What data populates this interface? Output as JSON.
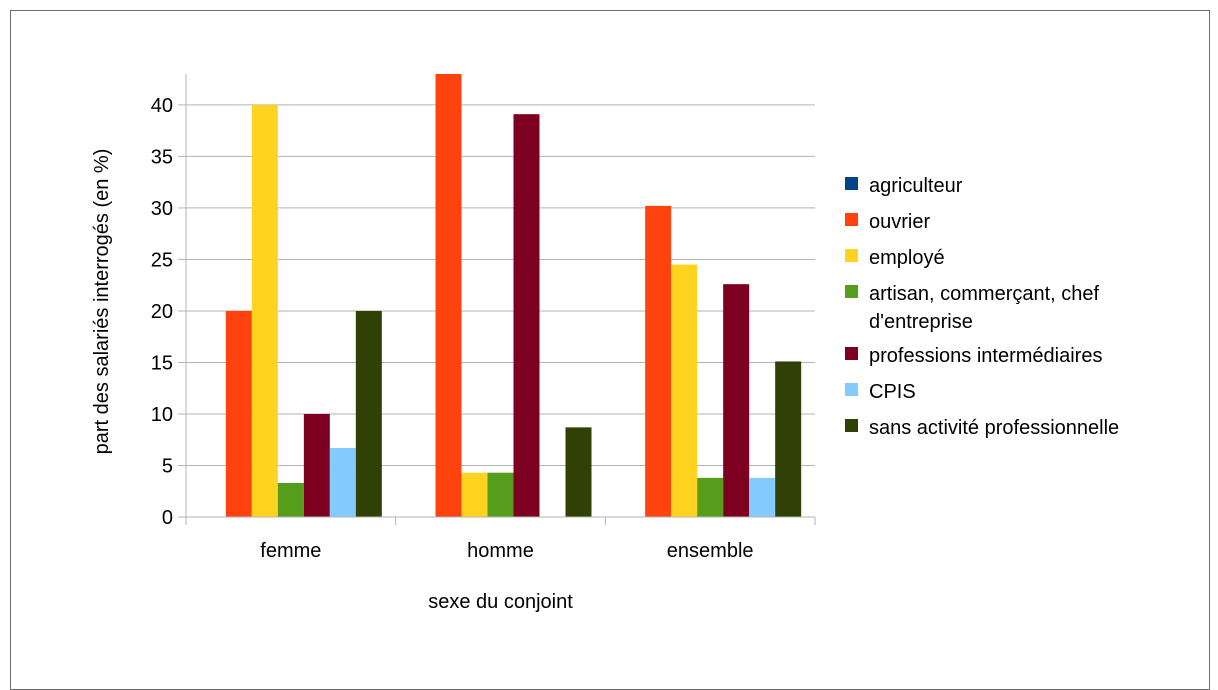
{
  "chart_data": {
    "type": "bar",
    "title": "",
    "xlabel": "sexe du conjoint",
    "ylabel": "part des salariés interrogés (en %)",
    "categories": [
      "femme",
      "homme",
      "ensemble"
    ],
    "ylim": [
      0,
      43
    ],
    "yticks": [
      0,
      5,
      10,
      15,
      20,
      25,
      30,
      35,
      40
    ],
    "grid": true,
    "legend_position": "right",
    "series": [
      {
        "name": "agriculteur",
        "color": "#004586",
        "values": [
          0,
          0,
          0
        ]
      },
      {
        "name": "ouvrier",
        "color": "#ff420e",
        "values": [
          20,
          43,
          30.2
        ]
      },
      {
        "name": "employé",
        "color": "#ffd320",
        "values": [
          40,
          4.3,
          24.5
        ]
      },
      {
        "name": "artisan, commerçant, chef d'entreprise",
        "legend_lines": [
          "artisan, commerçant, chef",
          "d'entreprise"
        ],
        "color": "#579d1c",
        "values": [
          3.3,
          4.3,
          3.8
        ]
      },
      {
        "name": "professions intermédiaires",
        "color": "#7e0021",
        "values": [
          10,
          39.1,
          22.6
        ]
      },
      {
        "name": "CPIS",
        "color": "#83caff",
        "values": [
          6.7,
          0,
          3.8
        ]
      },
      {
        "name": "sans activité professionnelle",
        "color": "#314004",
        "values": [
          20,
          8.7,
          15.1
        ]
      }
    ]
  }
}
